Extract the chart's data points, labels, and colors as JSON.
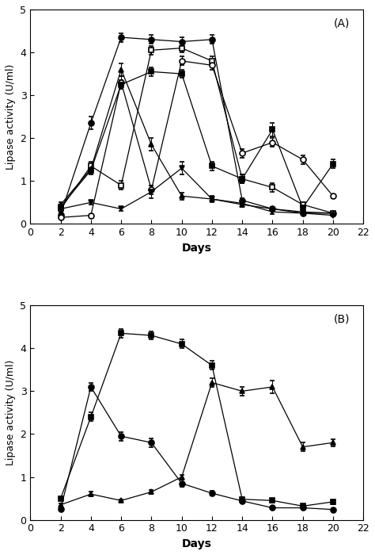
{
  "A": {
    "days": [
      2,
      4,
      6,
      8,
      10,
      12,
      14,
      16,
      18,
      20
    ],
    "series": [
      {
        "label": "filled_circle",
        "marker": "o",
        "fillstyle": "full",
        "values": [
          0.22,
          2.35,
          4.35,
          4.3,
          4.25,
          4.3,
          0.55,
          0.35,
          0.25,
          0.25
        ],
        "errors": [
          0.05,
          0.15,
          0.1,
          0.1,
          0.1,
          0.1,
          0.05,
          0.05,
          0.03,
          0.03
        ]
      },
      {
        "label": "open_square",
        "marker": "s",
        "fillstyle": "none",
        "values": [
          0.35,
          1.35,
          0.9,
          4.05,
          4.1,
          3.8,
          1.05,
          0.85,
          0.45,
          0.25
        ],
        "errors": [
          0.05,
          0.1,
          0.1,
          0.1,
          0.1,
          0.1,
          0.1,
          0.1,
          0.05,
          0.03
        ]
      },
      {
        "label": "open_circle",
        "marker": "o",
        "fillstyle": "none",
        "values": [
          0.15,
          0.2,
          3.3,
          0.8,
          3.8,
          3.7,
          1.65,
          1.9,
          1.5,
          0.65
        ],
        "errors": [
          0.03,
          0.03,
          0.15,
          0.1,
          0.1,
          0.1,
          0.1,
          0.1,
          0.1,
          0.05
        ]
      },
      {
        "label": "filled_triangle_up",
        "marker": "^",
        "fillstyle": "full",
        "values": [
          0.45,
          1.28,
          3.6,
          1.85,
          0.65,
          0.58,
          0.45,
          0.35,
          0.28,
          0.25
        ],
        "errors": [
          0.05,
          0.1,
          0.15,
          0.15,
          0.08,
          0.05,
          0.05,
          0.05,
          0.03,
          0.03
        ]
      },
      {
        "label": "filled_square",
        "marker": "s",
        "fillstyle": "full",
        "values": [
          0.4,
          1.25,
          3.25,
          3.55,
          3.5,
          1.35,
          1.05,
          2.2,
          0.38,
          1.4
        ],
        "errors": [
          0.05,
          0.1,
          0.1,
          0.1,
          0.1,
          0.1,
          0.1,
          0.15,
          0.05,
          0.1
        ]
      },
      {
        "label": "filled_triangle_down",
        "marker": "v",
        "fillstyle": "full",
        "values": [
          0.35,
          0.5,
          0.35,
          0.75,
          1.3,
          0.58,
          0.48,
          0.28,
          0.25,
          0.2
        ],
        "errors": [
          0.03,
          0.05,
          0.05,
          0.15,
          0.15,
          0.08,
          0.05,
          0.05,
          0.03,
          0.03
        ]
      }
    ],
    "ylabel": "Lipase activity (U/ml)",
    "ylim": [
      0,
      5
    ],
    "xlim": [
      0,
      22
    ],
    "xticks": [
      0,
      2,
      4,
      6,
      8,
      10,
      12,
      14,
      16,
      18,
      20,
      22
    ],
    "yticks": [
      0,
      1,
      2,
      3,
      4,
      5
    ],
    "panel_label": "(A)"
  },
  "B": {
    "days": [
      2,
      4,
      6,
      8,
      10,
      12,
      14,
      16,
      18,
      20
    ],
    "series": [
      {
        "label": "filled_square",
        "marker": "s",
        "fillstyle": "full",
        "values": [
          0.5,
          2.4,
          4.35,
          4.3,
          4.1,
          3.6,
          0.48,
          0.45,
          0.32,
          0.42
        ],
        "errors": [
          0.05,
          0.1,
          0.1,
          0.1,
          0.1,
          0.1,
          0.05,
          0.05,
          0.03,
          0.05
        ]
      },
      {
        "label": "filled_circle",
        "marker": "o",
        "fillstyle": "full",
        "values": [
          0.25,
          3.1,
          1.95,
          1.8,
          0.85,
          0.62,
          0.44,
          0.28,
          0.28,
          0.24
        ],
        "errors": [
          0.03,
          0.1,
          0.1,
          0.1,
          0.08,
          0.05,
          0.03,
          0.03,
          0.03,
          0.03
        ]
      },
      {
        "label": "filled_triangle_up",
        "marker": "^",
        "fillstyle": "full",
        "values": [
          0.35,
          0.6,
          0.45,
          0.65,
          1.0,
          3.2,
          3.0,
          3.1,
          1.7,
          1.8
        ],
        "errors": [
          0.03,
          0.05,
          0.03,
          0.05,
          0.05,
          0.1,
          0.1,
          0.15,
          0.1,
          0.08
        ]
      }
    ],
    "ylabel": "Lipase activity (U/ml)",
    "ylim": [
      0,
      5
    ],
    "xlim": [
      0,
      22
    ],
    "xticks": [
      0,
      2,
      4,
      6,
      8,
      10,
      12,
      14,
      16,
      18,
      20,
      22
    ],
    "yticks": [
      0,
      1,
      2,
      3,
      4,
      5
    ],
    "panel_label": "(B)"
  },
  "xlabel": "Days",
  "fig_width": 4.74,
  "fig_height": 7.0,
  "dpi": 100
}
